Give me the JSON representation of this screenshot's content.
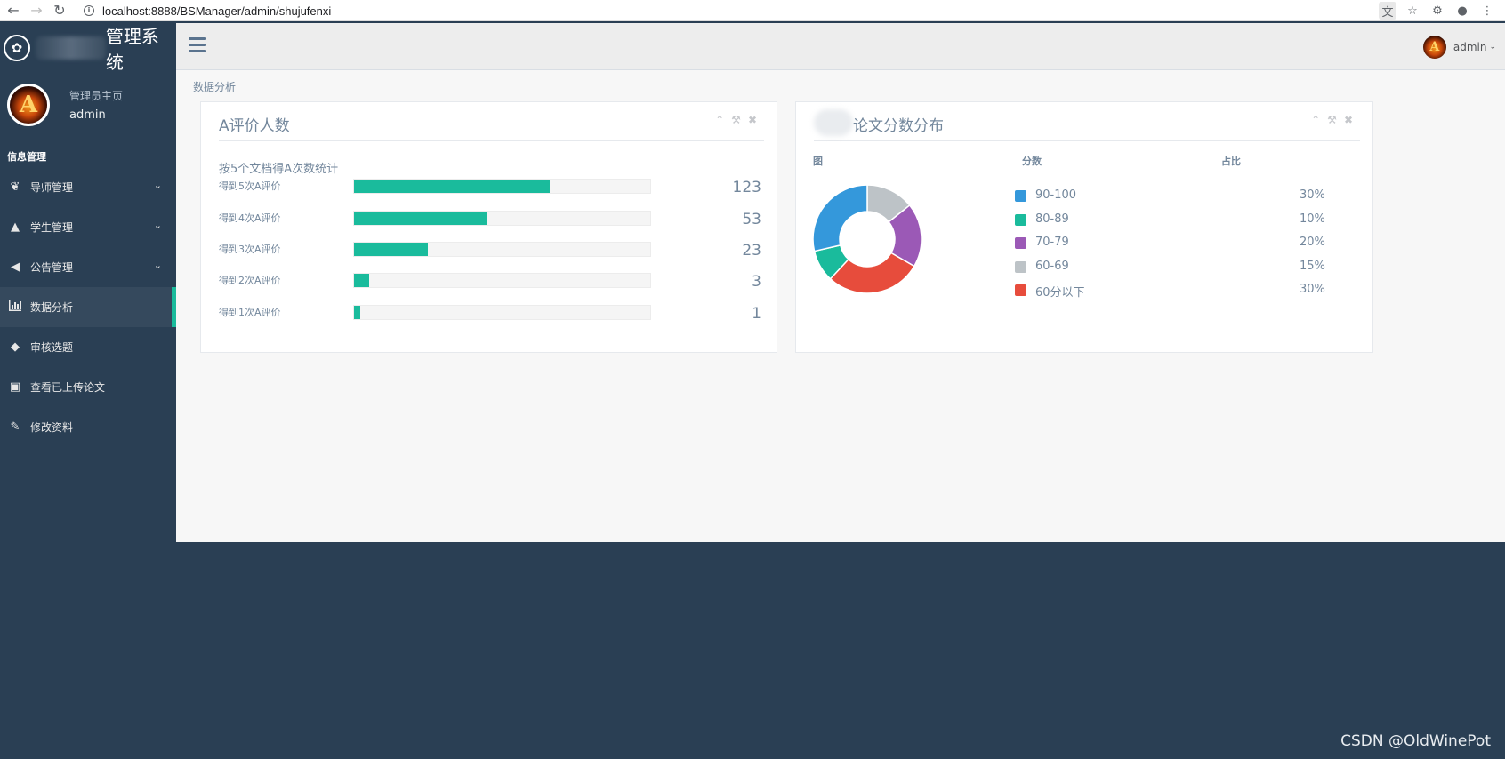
{
  "browser": {
    "url": "localhost:8888/BSManager/admin/shujufenxi"
  },
  "brand": {
    "title": "管理系统"
  },
  "profile": {
    "subtitle": "管理员主页",
    "name": "admin"
  },
  "sidebar": {
    "section": "信息管理",
    "items": [
      {
        "label": "导师管理",
        "icon": "leaf-icon",
        "has_submenu": true
      },
      {
        "label": "学生管理",
        "icon": "graduation-cap-icon",
        "has_submenu": true
      },
      {
        "label": "公告管理",
        "icon": "bullhorn-icon",
        "has_submenu": true
      },
      {
        "label": "数据分析",
        "icon": "bar-chart-icon",
        "active": true
      },
      {
        "label": "审核选题",
        "icon": "tags-icon"
      },
      {
        "label": "查看已上传论文",
        "icon": "folder-open-icon"
      },
      {
        "label": "修改资料",
        "icon": "edit-icon"
      }
    ]
  },
  "header": {
    "user_name": "admin"
  },
  "breadcrumb": "数据分析",
  "panel_a": {
    "title": "A评价人数",
    "subtitle": "按5个文档得A次数统计",
    "rows": [
      {
        "label": "得到5次A评价",
        "value": "123",
        "fill": 0.66
      },
      {
        "label": "得到4次A评价",
        "value": "53",
        "fill": 0.45
      },
      {
        "label": "得到3次A评价",
        "value": "23",
        "fill": 0.25
      },
      {
        "label": "得到2次A评价",
        "value": "3",
        "fill": 0.05
      },
      {
        "label": "得到1次A评价",
        "value": "1",
        "fill": 0.02
      }
    ]
  },
  "panel_b": {
    "title": "论文分数分布",
    "col_chart": "图",
    "col_score": "分数",
    "col_ratio": "占比"
  },
  "chart_data": {
    "type": "pie",
    "categories": [
      "90-100",
      "80-89",
      "70-79",
      "60-69",
      "60分以下"
    ],
    "values": [
      30,
      10,
      20,
      15,
      30
    ],
    "labels": [
      "30%",
      "10%",
      "20%",
      "15%",
      "30%"
    ],
    "colors": [
      "#3498db",
      "#1abb9c",
      "#9b59b6",
      "#bdc3c7",
      "#e74c3c"
    ],
    "draw_order": [
      "60-69",
      "70-79",
      "60分以下",
      "80-89",
      "90-100"
    ],
    "donut": true
  },
  "watermark": "CSDN @OldWinePot"
}
